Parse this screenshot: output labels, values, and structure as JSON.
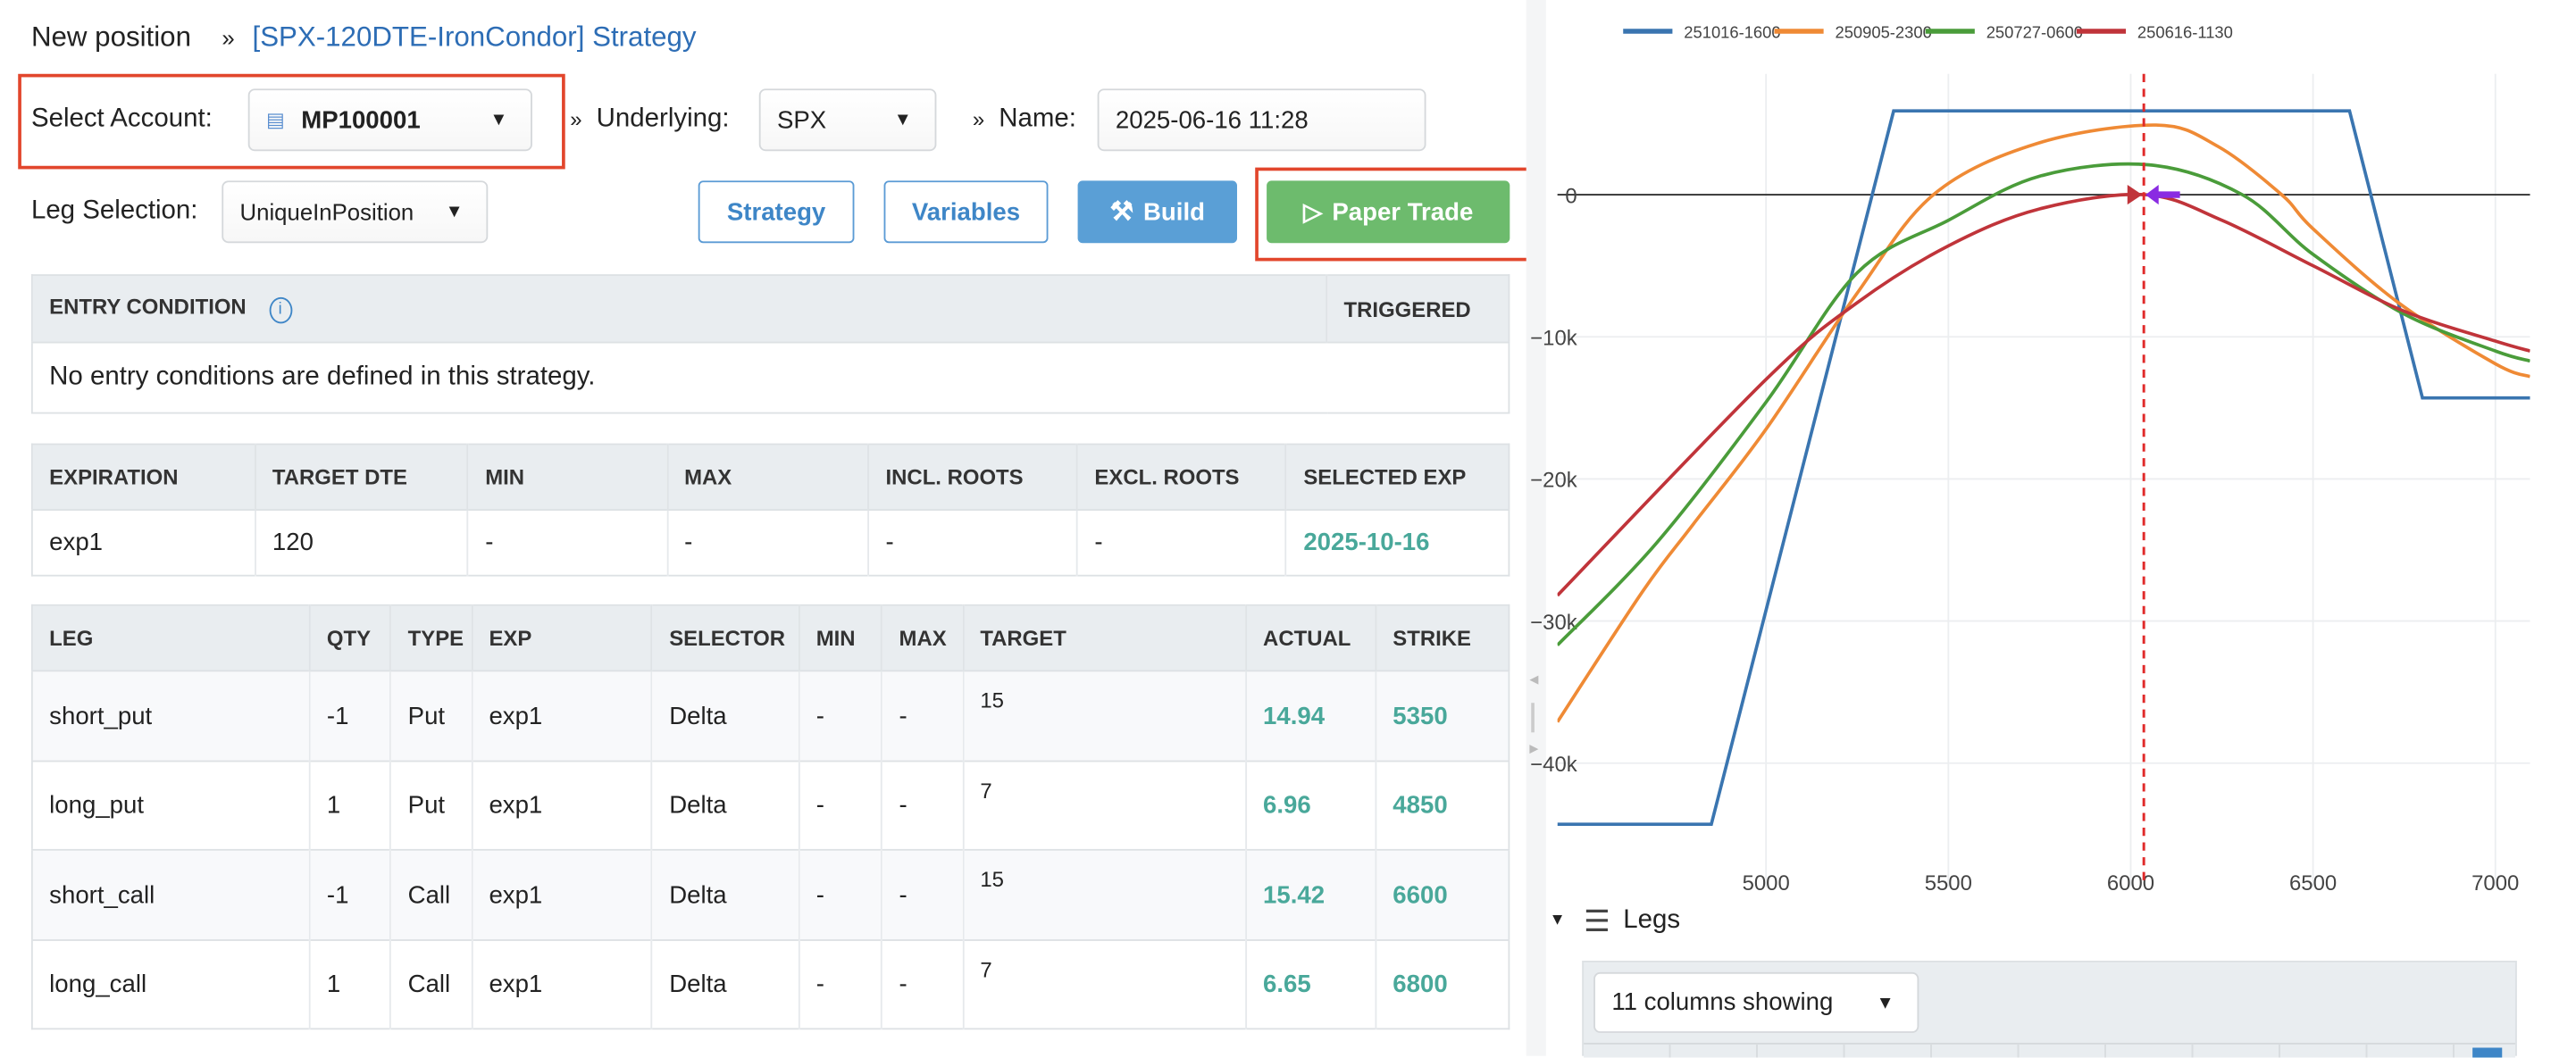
{
  "breadcrumb": {
    "root": "New position",
    "sep": "»",
    "strategy_link": "[SPX-120DTE-IronCondor] Strategy"
  },
  "form": {
    "account_label": "Select Account:",
    "account_value": "MP100001",
    "sep": "»",
    "underlying_label": "Underlying:",
    "underlying_value": "SPX",
    "name_label": "Name:",
    "name_value": "2025-06-16 11:28",
    "leg_selection_label": "Leg Selection:",
    "leg_selection_value": "UniqueInPosition"
  },
  "buttons": {
    "strategy": "Strategy",
    "variables": "Variables",
    "build": "Build",
    "paper_trade": "Paper Trade"
  },
  "entry_table": {
    "headers": [
      "ENTRY CONDITION",
      "TRIGGERED"
    ],
    "empty_message": "No entry conditions are defined in this strategy."
  },
  "expiration_table": {
    "headers": [
      "EXPIRATION",
      "TARGET DTE",
      "MIN",
      "MAX",
      "INCL. ROOTS",
      "EXCL. ROOTS",
      "SELECTED EXP"
    ],
    "rows": [
      [
        "exp1",
        "120",
        "-",
        "-",
        "-",
        "-",
        "2025-10-16"
      ]
    ]
  },
  "legs_table": {
    "headers": [
      "LEG",
      "QTY",
      "TYPE",
      "EXP",
      "SELECTOR",
      "MIN",
      "MAX",
      "TARGET",
      "ACTUAL",
      "STRIKE"
    ],
    "rows": [
      [
        "short_put",
        "-1",
        "Put",
        "exp1",
        "Delta",
        "-",
        "-",
        "15",
        "14.94",
        "5350"
      ],
      [
        "long_put",
        "1",
        "Put",
        "exp1",
        "Delta",
        "-",
        "-",
        "7",
        "6.96",
        "4850"
      ],
      [
        "short_call",
        "-1",
        "Call",
        "exp1",
        "Delta",
        "-",
        "-",
        "15",
        "15.42",
        "6600"
      ],
      [
        "long_call",
        "1",
        "Call",
        "exp1",
        "Delta",
        "-",
        "-",
        "7",
        "6.65",
        "6800"
      ]
    ]
  },
  "legs_panel": {
    "title": "Legs",
    "columns_select": "11 columns showing"
  },
  "colors": {
    "accent": "#3e86c7",
    "build": "#5a9fd6",
    "paper_trade": "#6dbb6d",
    "highlight": "#e2462c",
    "value": "#49a89a"
  },
  "chart_data": {
    "type": "line",
    "legend_placement": "top",
    "xlim": [
      4428,
      7095
    ],
    "ylim": [
      -48700,
      8500
    ],
    "x_ticks": [
      5000,
      5500,
      6000,
      6500,
      7000
    ],
    "y_ticks": [
      0,
      -10000,
      -20000,
      -30000,
      -40000
    ],
    "y_tick_labels": [
      "0",
      "−10k",
      "−20k",
      "−30k",
      "−40k"
    ],
    "current_price_line": 6036,
    "series": [
      {
        "name": "251016-1600",
        "color": "#3a75b0",
        "smooth": false,
        "points": [
          [
            4428,
            -44300
          ],
          [
            4850,
            -44300
          ],
          [
            5350,
            5900
          ],
          [
            6600,
            5900
          ],
          [
            6800,
            -14300
          ],
          [
            7095,
            -14300
          ]
        ]
      },
      {
        "name": "250905-2300",
        "color": "#ef8a35",
        "smooth": true,
        "points": [
          [
            4428,
            -37100
          ],
          [
            4662,
            -27900
          ],
          [
            4800,
            -23200
          ],
          [
            5000,
            -16500
          ],
          [
            5248,
            -7000
          ],
          [
            5459,
            0
          ],
          [
            5743,
            3600
          ],
          [
            6070,
            4900
          ],
          [
            6239,
            3400
          ],
          [
            6414,
            0
          ],
          [
            6500,
            -2400
          ],
          [
            6734,
            -7600
          ],
          [
            7000,
            -11900
          ],
          [
            7095,
            -12800
          ]
        ]
      },
      {
        "name": "250727-0600",
        "color": "#4a9c3a",
        "smooth": true,
        "points": [
          [
            4428,
            -31700
          ],
          [
            4700,
            -24500
          ],
          [
            5000,
            -14600
          ],
          [
            5250,
            -5500
          ],
          [
            5500,
            -1800
          ],
          [
            5750,
            1300
          ],
          [
            6050,
            2100
          ],
          [
            6306,
            0
          ],
          [
            6500,
            -4200
          ],
          [
            6750,
            -8400
          ],
          [
            7000,
            -11000
          ],
          [
            7095,
            -11700
          ]
        ]
      },
      {
        "name": "250616-1130",
        "color": "#c0343a",
        "smooth": true,
        "points": [
          [
            4428,
            -28200
          ],
          [
            5000,
            -13000
          ],
          [
            5250,
            -7600
          ],
          [
            5500,
            -3600
          ],
          [
            5750,
            -1000
          ],
          [
            6040,
            0
          ],
          [
            6250,
            -1800
          ],
          [
            6500,
            -5000
          ],
          [
            6750,
            -8200
          ],
          [
            7000,
            -10300
          ],
          [
            7095,
            -11000
          ]
        ]
      }
    ]
  }
}
